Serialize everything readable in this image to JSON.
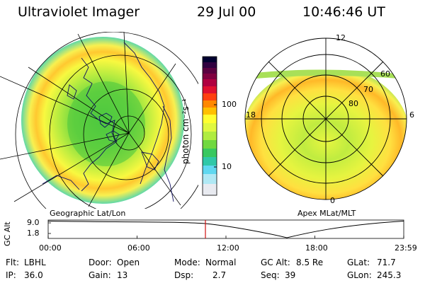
{
  "header": {
    "title": "Ultraviolet Imager",
    "date": "29 Jul 00",
    "time": "10:46:46 UT"
  },
  "left_panel": {
    "label": "Geographic Lat/Lon"
  },
  "right_panel": {
    "label": "Apex MLat/MLT",
    "clock_labels": {
      "top": "12",
      "left": "18",
      "right": "6",
      "bottom": "0"
    },
    "lat_labels": [
      "60",
      "70",
      "80"
    ]
  },
  "colorbar": {
    "unit_label": "photon cm⁻²s⁻¹",
    "tick_labels": [
      "100",
      "10"
    ],
    "colors": [
      "#000030",
      "#5a0040",
      "#b00040",
      "#ff2020",
      "#ff8800",
      "#ffc000",
      "#ffff30",
      "#c8f040",
      "#60d840",
      "#30c8a8",
      "#60d8f0",
      "#d8d8e8"
    ]
  },
  "timeline": {
    "axis_title": "GC Alt",
    "y_tick_top": "9.0",
    "y_tick_bottom": "1.8",
    "x_ticks": [
      "00:00",
      "06:00",
      "12:00",
      "18:00",
      "23:59"
    ],
    "marker_time": "10:46:46",
    "marker_color": "#d01010"
  },
  "info": {
    "filter_label": "Flt:",
    "filter_value": "LBHL",
    "door_label": "Door:",
    "door_value": "Open",
    "mode_label": "Mode:",
    "mode_value": "Normal",
    "gcalt_label": "GC Alt:",
    "gcalt_value": "8.5 Re",
    "glat_label": "GLat:",
    "glat_value": "71.7",
    "ip_label": "IP:",
    "ip_value": "36.0",
    "gain_label": "Gain:",
    "gain_value": "13",
    "dsp_label": "Dsp:",
    "dsp_value": "2.7",
    "seq_label": "Seq:",
    "seq_value": "39",
    "glon_label": "GLon:",
    "glon_value": "245.3"
  }
}
